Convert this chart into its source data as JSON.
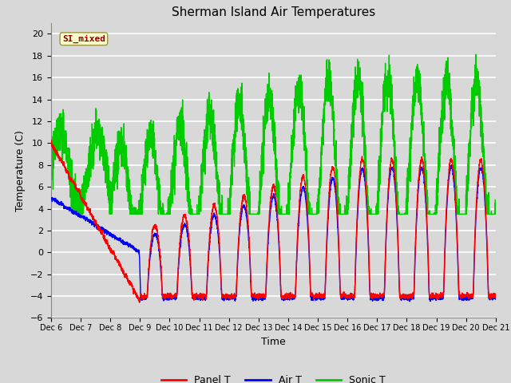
{
  "title": "Sherman Island Air Temperatures",
  "xlabel": "Time",
  "ylabel": "Temperature (C)",
  "ylim": [
    -6,
    21
  ],
  "xlim": [
    0,
    15
  ],
  "background_color": "#d8d8d8",
  "annotation_text": "SI_mixed",
  "annotation_bg": "#ffffcc",
  "annotation_fg": "#880000",
  "x_tick_labels": [
    "Dec 6",
    "Dec 7",
    "Dec 8",
    "Dec 9",
    "Dec 10",
    "Dec 11",
    "Dec 12",
    "Dec 13",
    "Dec 14",
    "Dec 15",
    "Dec 16",
    "Dec 17",
    "Dec 18",
    "Dec 19",
    "Dec 20",
    "Dec 21"
  ],
  "legend_items": [
    "Panel T",
    "Air T",
    "Sonic T"
  ],
  "legend_colors": [
    "#ff0000",
    "#0000ff",
    "#00cc00"
  ],
  "title_fontsize": 11,
  "label_fontsize": 9,
  "tick_fontsize": 7
}
